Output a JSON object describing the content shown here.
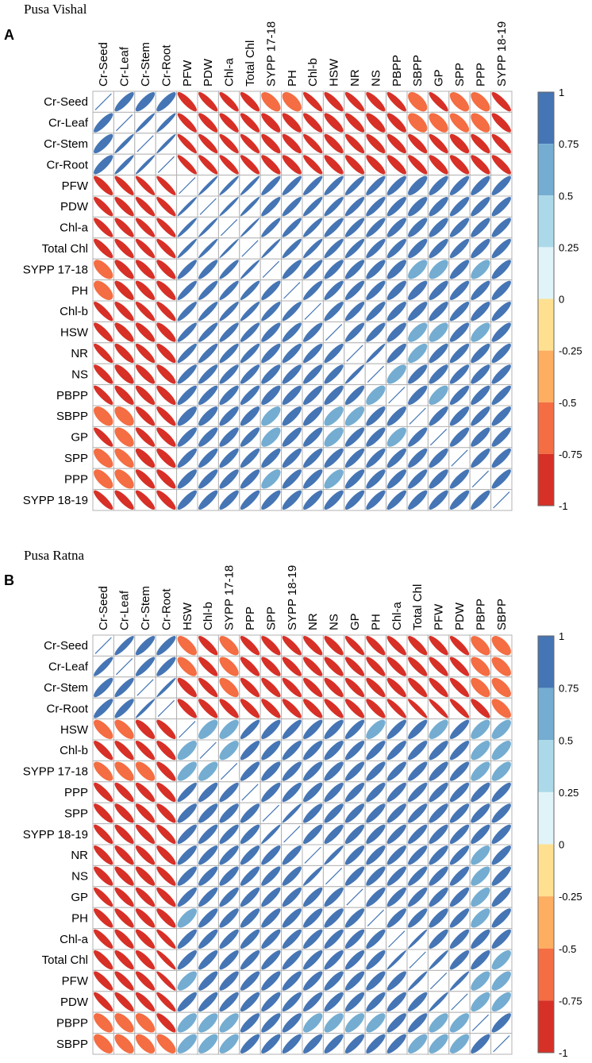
{
  "palette": {
    "bins": [
      "#d73027",
      "#f46d43",
      "#fdae61",
      "#fee090",
      "#e0f3f8",
      "#abd9e9",
      "#74add1",
      "#4575b4"
    ],
    "grid": "#b3b3b3",
    "diagonal_stroke": "#4575b4"
  },
  "chart_data": [
    {
      "type": "heatmap",
      "panel": "A",
      "title": "Pusa Vishal",
      "labels": [
        "Cr-Seed",
        "Cr-Leaf",
        "Cr-Stem",
        "Cr-Root",
        "PFW",
        "PDW",
        "Chl-a",
        "Total Chl",
        "SYPP 17-18",
        "PH",
        "Chl-b",
        "HSW",
        "NR",
        "NS",
        "PBPP",
        "SBPP",
        "GP",
        "SPP",
        "PPP",
        "SYPP 18-19"
      ],
      "legend_ticks": [
        "1",
        "0.75",
        "0.5",
        "0.25",
        "0",
        "-0.25",
        "-0.5",
        "-0.75",
        "-1"
      ],
      "legend_range": [
        -1,
        1
      ],
      "matrix": [
        [
          1,
          0.85,
          0.82,
          0.83,
          -0.85,
          -0.87,
          -0.87,
          -0.85,
          -0.65,
          -0.6,
          -0.87,
          -0.85,
          -0.87,
          -0.85,
          -0.87,
          -0.6,
          -0.87,
          -0.65,
          -0.65,
          -0.86
        ],
        [
          0.85,
          1,
          0.96,
          0.95,
          -0.88,
          -0.86,
          -0.86,
          -0.86,
          -0.82,
          -0.82,
          -0.85,
          -0.82,
          -0.84,
          -0.8,
          -0.83,
          -0.58,
          -0.62,
          -0.72,
          -0.62,
          -0.84
        ],
        [
          0.82,
          0.96,
          1,
          0.97,
          -0.9,
          -0.88,
          -0.88,
          -0.88,
          -0.84,
          -0.84,
          -0.88,
          -0.84,
          -0.86,
          -0.84,
          -0.84,
          -0.85,
          -0.86,
          -0.8,
          -0.84,
          -0.86
        ],
        [
          0.83,
          0.95,
          0.97,
          1,
          -0.9,
          -0.89,
          -0.89,
          -0.88,
          -0.85,
          -0.84,
          -0.88,
          -0.84,
          -0.85,
          -0.84,
          -0.84,
          -0.86,
          -0.84,
          -0.83,
          -0.84,
          -0.85
        ],
        [
          -0.85,
          -0.88,
          -0.9,
          -0.9,
          1,
          0.97,
          0.96,
          0.96,
          0.9,
          0.9,
          0.9,
          0.9,
          0.9,
          0.88,
          0.86,
          0.8,
          0.85,
          0.86,
          0.84,
          0.85
        ],
        [
          -0.87,
          -0.86,
          -0.88,
          -0.89,
          0.97,
          1,
          0.97,
          0.96,
          0.89,
          0.9,
          0.91,
          0.9,
          0.89,
          0.88,
          0.86,
          0.82,
          0.84,
          0.86,
          0.86,
          0.85
        ],
        [
          -0.87,
          -0.86,
          -0.88,
          -0.89,
          0.96,
          0.97,
          1,
          0.98,
          0.92,
          0.91,
          0.92,
          0.89,
          0.89,
          0.88,
          0.85,
          0.84,
          0.84,
          0.86,
          0.85,
          0.85
        ],
        [
          -0.85,
          -0.86,
          -0.88,
          -0.88,
          0.96,
          0.96,
          0.98,
          1,
          0.97,
          0.92,
          0.93,
          0.9,
          0.9,
          0.88,
          0.87,
          0.83,
          0.86,
          0.87,
          0.85,
          0.86
        ],
        [
          -0.65,
          -0.82,
          -0.84,
          -0.85,
          0.9,
          0.89,
          0.92,
          0.97,
          1,
          0.88,
          0.9,
          0.87,
          0.86,
          0.85,
          0.82,
          0.7,
          0.68,
          0.84,
          0.7,
          0.84
        ],
        [
          -0.6,
          -0.82,
          -0.84,
          -0.84,
          0.9,
          0.9,
          0.91,
          0.92,
          0.88,
          1,
          0.9,
          0.88,
          0.87,
          0.86,
          0.84,
          0.82,
          0.84,
          0.85,
          0.85,
          0.84
        ],
        [
          -0.87,
          -0.85,
          -0.88,
          -0.88,
          0.9,
          0.91,
          0.92,
          0.93,
          0.9,
          0.9,
          1,
          0.88,
          0.88,
          0.87,
          0.85,
          0.83,
          0.84,
          0.86,
          0.84,
          0.85
        ],
        [
          -0.85,
          -0.82,
          -0.84,
          -0.84,
          0.9,
          0.9,
          0.89,
          0.9,
          0.87,
          0.88,
          0.88,
          1,
          0.88,
          0.87,
          0.84,
          0.7,
          0.68,
          0.84,
          0.7,
          0.84
        ],
        [
          -0.87,
          -0.84,
          -0.86,
          -0.85,
          0.9,
          0.89,
          0.89,
          0.9,
          0.86,
          0.87,
          0.88,
          0.88,
          1,
          0.96,
          0.86,
          0.72,
          0.85,
          0.86,
          0.84,
          0.85
        ],
        [
          -0.85,
          -0.8,
          -0.84,
          -0.84,
          0.88,
          0.88,
          0.88,
          0.88,
          0.85,
          0.86,
          0.87,
          0.87,
          0.96,
          1,
          0.7,
          0.84,
          0.84,
          0.86,
          0.84,
          0.85
        ],
        [
          -0.87,
          -0.83,
          -0.84,
          -0.84,
          0.86,
          0.86,
          0.85,
          0.87,
          0.82,
          0.84,
          0.85,
          0.84,
          0.86,
          0.7,
          1,
          0.84,
          0.7,
          0.85,
          0.84,
          0.86
        ],
        [
          -0.6,
          -0.58,
          -0.85,
          -0.86,
          0.8,
          0.82,
          0.84,
          0.83,
          0.7,
          0.82,
          0.83,
          0.7,
          0.72,
          0.84,
          0.84,
          1,
          0.86,
          0.84,
          0.86,
          0.84
        ],
        [
          -0.87,
          -0.62,
          -0.86,
          -0.84,
          0.85,
          0.84,
          0.84,
          0.86,
          0.68,
          0.84,
          0.84,
          0.68,
          0.85,
          0.84,
          0.7,
          0.86,
          1,
          0.85,
          0.84,
          0.85
        ],
        [
          -0.65,
          -0.72,
          -0.8,
          -0.83,
          0.86,
          0.86,
          0.86,
          0.87,
          0.84,
          0.85,
          0.86,
          0.84,
          0.86,
          0.86,
          0.85,
          0.84,
          0.85,
          1,
          0.86,
          0.85
        ],
        [
          -0.65,
          -0.62,
          -0.84,
          -0.84,
          0.84,
          0.86,
          0.85,
          0.85,
          0.7,
          0.85,
          0.84,
          0.7,
          0.84,
          0.84,
          0.84,
          0.86,
          0.84,
          0.86,
          1,
          0.86
        ],
        [
          -0.86,
          -0.84,
          -0.86,
          -0.85,
          0.85,
          0.85,
          0.85,
          0.86,
          0.84,
          0.84,
          0.85,
          0.84,
          0.85,
          0.85,
          0.86,
          0.84,
          0.85,
          0.85,
          0.86,
          1
        ]
      ]
    },
    {
      "type": "heatmap",
      "panel": "B",
      "title": "Pusa Ratna",
      "labels": [
        "Cr-Seed",
        "Cr-Leaf",
        "Cr-Stem",
        "Cr-Root",
        "HSW",
        "Chl-b",
        "SYPP 17-18",
        "PPP",
        "SPP",
        "SYPP 18-19",
        "NR",
        "NS",
        "GP",
        "PH",
        "Chl-a",
        "Total Chl",
        "PFW",
        "PDW",
        "PBPP",
        "SBPP"
      ],
      "legend_ticks": [
        "1",
        "0.75",
        "0.5",
        "0.25",
        "0",
        "-0.25",
        "-0.5",
        "-0.75",
        "-1"
      ],
      "legend_range": [
        -1,
        1
      ],
      "matrix": [
        [
          1,
          0.9,
          0.85,
          0.86,
          -0.7,
          -0.85,
          -0.7,
          -0.85,
          -0.84,
          -0.86,
          -0.85,
          -0.84,
          -0.88,
          -0.85,
          -0.86,
          -0.84,
          -0.85,
          -0.87,
          -0.65,
          -0.62
        ],
        [
          0.9,
          1,
          0.88,
          0.87,
          -0.7,
          -0.85,
          -0.68,
          -0.85,
          -0.84,
          -0.85,
          -0.85,
          -0.84,
          -0.86,
          -0.86,
          -0.85,
          -0.85,
          -0.86,
          -0.86,
          -0.66,
          -0.65
        ],
        [
          0.85,
          0.88,
          1,
          0.97,
          -0.82,
          -0.86,
          -0.68,
          -0.85,
          -0.85,
          -0.86,
          -0.85,
          -0.84,
          -0.86,
          -0.85,
          -0.85,
          -0.85,
          -0.86,
          -0.86,
          -0.66,
          -0.65
        ],
        [
          0.86,
          0.87,
          0.97,
          1,
          -0.85,
          -0.85,
          -0.85,
          -0.85,
          -0.85,
          -0.86,
          -0.85,
          -0.86,
          -0.86,
          -0.85,
          -0.9,
          -0.93,
          -0.93,
          -0.9,
          -0.85,
          -0.68
        ],
        [
          -0.7,
          -0.7,
          -0.82,
          -0.85,
          1,
          0.7,
          0.72,
          0.88,
          0.84,
          0.86,
          0.85,
          0.84,
          0.86,
          0.72,
          0.86,
          0.85,
          0.72,
          0.85,
          0.7,
          0.7
        ],
        [
          -0.85,
          -0.85,
          -0.86,
          -0.85,
          0.7,
          1,
          0.7,
          0.85,
          0.84,
          0.86,
          0.85,
          0.84,
          0.86,
          0.85,
          0.86,
          0.85,
          0.84,
          0.85,
          0.7,
          0.7
        ],
        [
          -0.7,
          -0.68,
          -0.68,
          -0.85,
          0.72,
          0.7,
          1,
          0.86,
          0.84,
          0.86,
          0.85,
          0.84,
          0.86,
          0.85,
          0.86,
          0.85,
          0.84,
          0.85,
          0.72,
          0.72
        ],
        [
          -0.85,
          -0.85,
          -0.85,
          -0.85,
          0.88,
          0.85,
          0.86,
          1,
          0.86,
          0.86,
          0.85,
          0.86,
          0.86,
          0.85,
          0.86,
          0.86,
          0.85,
          0.85,
          0.84,
          0.84
        ],
        [
          -0.84,
          -0.84,
          -0.85,
          -0.85,
          0.84,
          0.84,
          0.84,
          0.86,
          1,
          0.96,
          0.86,
          0.86,
          0.86,
          0.85,
          0.86,
          0.86,
          0.85,
          0.85,
          0.84,
          0.84
        ],
        [
          -0.86,
          -0.85,
          -0.86,
          -0.86,
          0.86,
          0.86,
          0.86,
          0.86,
          0.96,
          1,
          0.86,
          0.86,
          0.86,
          0.85,
          0.86,
          0.86,
          0.85,
          0.86,
          0.84,
          0.84
        ],
        [
          -0.85,
          -0.85,
          -0.85,
          -0.85,
          0.85,
          0.85,
          0.85,
          0.85,
          0.86,
          0.86,
          1,
          0.95,
          0.86,
          0.85,
          0.86,
          0.86,
          0.85,
          0.86,
          0.72,
          0.84
        ],
        [
          -0.84,
          -0.84,
          -0.84,
          -0.86,
          0.84,
          0.84,
          0.84,
          0.86,
          0.86,
          0.86,
          0.95,
          1,
          0.86,
          0.85,
          0.86,
          0.86,
          0.85,
          0.85,
          0.72,
          0.84
        ],
        [
          -0.88,
          -0.86,
          -0.86,
          -0.86,
          0.86,
          0.86,
          0.86,
          0.86,
          0.86,
          0.86,
          0.86,
          0.86,
          1,
          0.86,
          0.86,
          0.86,
          0.85,
          0.85,
          0.72,
          0.84
        ],
        [
          -0.85,
          -0.86,
          -0.85,
          -0.85,
          0.72,
          0.85,
          0.85,
          0.85,
          0.85,
          0.85,
          0.85,
          0.85,
          0.86,
          1,
          0.86,
          0.86,
          0.84,
          0.86,
          0.72,
          0.84
        ],
        [
          -0.86,
          -0.85,
          -0.85,
          -0.9,
          0.86,
          0.86,
          0.86,
          0.86,
          0.86,
          0.86,
          0.86,
          0.86,
          0.86,
          0.86,
          1,
          0.97,
          0.86,
          0.86,
          0.84,
          0.84
        ],
        [
          -0.84,
          -0.85,
          -0.85,
          -0.93,
          0.85,
          0.85,
          0.85,
          0.86,
          0.86,
          0.86,
          0.86,
          0.86,
          0.86,
          0.86,
          0.97,
          1,
          0.96,
          0.86,
          0.84,
          0.72
        ],
        [
          -0.85,
          -0.86,
          -0.86,
          -0.93,
          0.72,
          0.84,
          0.84,
          0.85,
          0.85,
          0.85,
          0.85,
          0.85,
          0.85,
          0.84,
          0.86,
          0.96,
          1,
          0.96,
          0.72,
          0.72
        ],
        [
          -0.87,
          -0.86,
          -0.86,
          -0.9,
          0.85,
          0.85,
          0.85,
          0.85,
          0.85,
          0.86,
          0.86,
          0.85,
          0.85,
          0.86,
          0.86,
          0.86,
          0.96,
          1,
          0.72,
          0.72
        ],
        [
          -0.65,
          -0.66,
          -0.66,
          -0.85,
          0.7,
          0.7,
          0.72,
          0.84,
          0.84,
          0.84,
          0.72,
          0.72,
          0.72,
          0.72,
          0.84,
          0.84,
          0.72,
          0.72,
          1,
          0.84
        ],
        [
          -0.62,
          -0.65,
          -0.65,
          -0.68,
          0.7,
          0.7,
          0.72,
          0.84,
          0.84,
          0.84,
          0.84,
          0.84,
          0.84,
          0.84,
          0.84,
          0.72,
          0.72,
          0.72,
          0.84,
          1
        ]
      ]
    }
  ]
}
